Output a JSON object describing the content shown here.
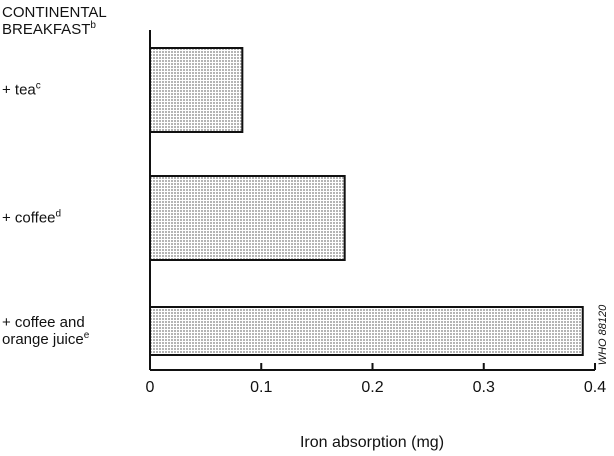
{
  "chart_data": {
    "type": "bar",
    "orientation": "horizontal",
    "title": "CONTINENTAL BREAKFAST",
    "title_footnote": "b",
    "categories": [
      "+ tea",
      "+ coffee",
      "+ coffee and orange juice"
    ],
    "footnotes": [
      "c",
      "d",
      "e"
    ],
    "values": [
      0.083,
      0.175,
      0.389
    ],
    "color": "#b5b5b5",
    "xlabel": "Iron absorption (mg)",
    "xlim": [
      0,
      0.4
    ],
    "xticks": [
      0,
      0.1,
      0.2,
      0.3,
      0.4
    ],
    "grid": false,
    "side_note": "WHO 88120"
  }
}
